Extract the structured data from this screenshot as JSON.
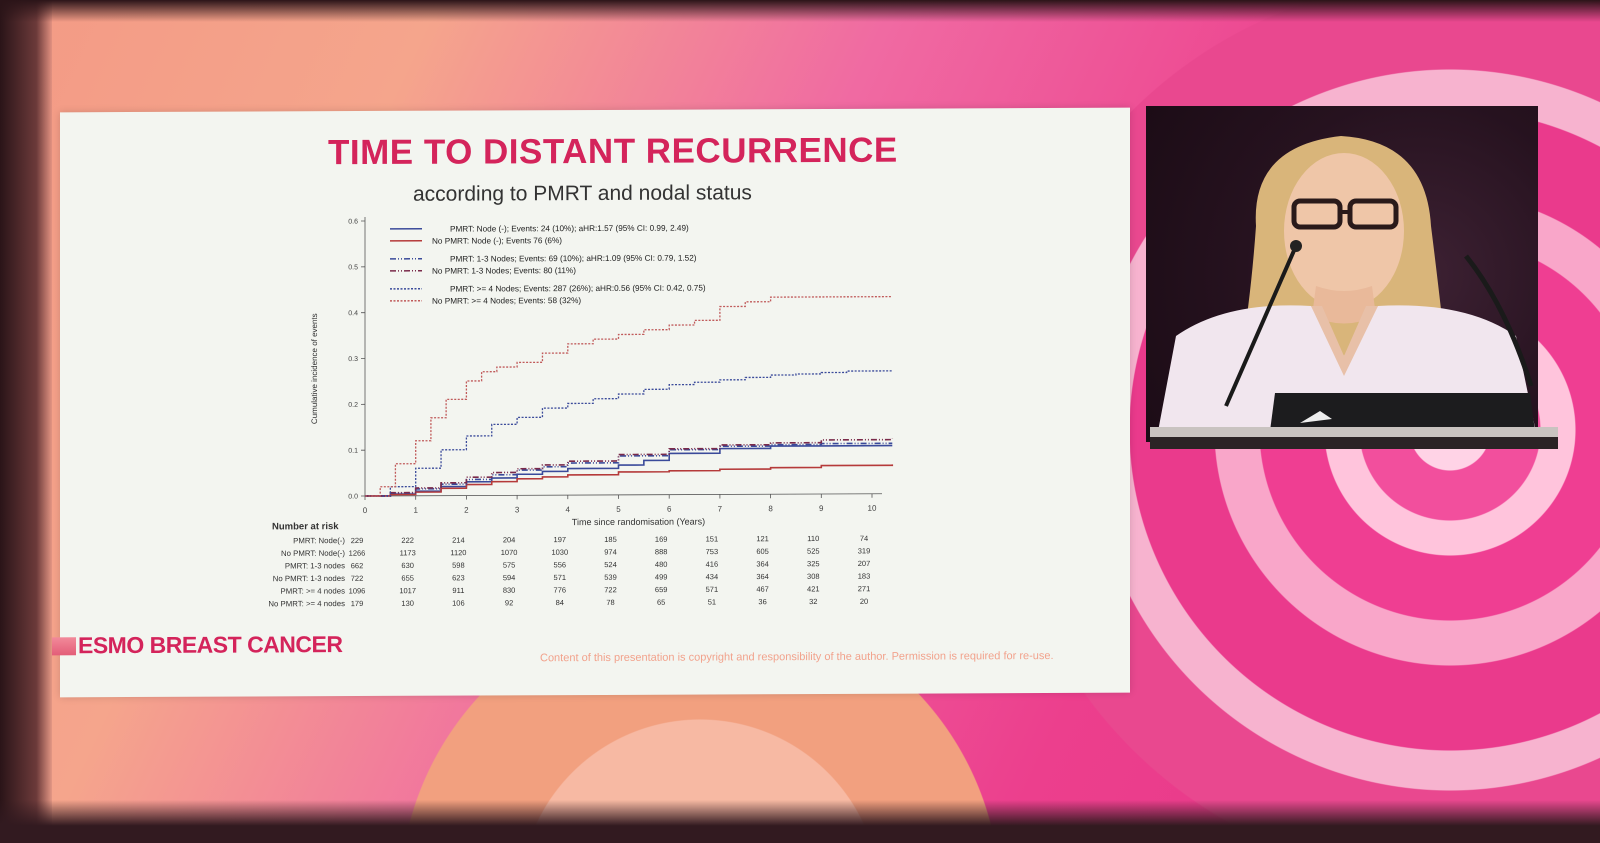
{
  "slide": {
    "title": "TIME TO DISTANT RECURRENCE",
    "subtitle": "according to PMRT and nodal status",
    "logo": "ESMO BREAST CANCER",
    "copyright": "Content of this presentation is copyright and responsibility of the author. Permission is required for re-use."
  },
  "chart_data": {
    "type": "line",
    "title": "TIME TO DISTANT RECURRENCE",
    "subtitle": "according to PMRT and nodal status",
    "xlabel": "Time since randomisation (Years)",
    "ylabel": "Cumulative incidence of events",
    "xlim": [
      0,
      10
    ],
    "ylim": [
      0,
      0.6
    ],
    "xticks": [
      "0",
      "1",
      "2",
      "3",
      "4",
      "5",
      "6",
      "7",
      "8",
      "9",
      "10"
    ],
    "yticks": [
      "0.0",
      "0.1",
      "0.2",
      "0.3",
      "0.4",
      "0.5",
      "0.6"
    ],
    "legend_position": "top-left",
    "grid": false,
    "series": [
      {
        "name": "PMRT: Node (-);  Events: 24 (10%);  aHR:1.57 (95% CI: 0.99, 2.49)",
        "color": "#3a4a9a",
        "dash": "",
        "x": [
          0,
          0.5,
          1,
          1.5,
          2,
          2.5,
          3,
          3.5,
          4,
          5,
          5.5,
          6,
          7,
          8,
          9,
          10.4
        ],
        "y": [
          0,
          0.004,
          0.01,
          0.02,
          0.03,
          0.038,
          0.046,
          0.052,
          0.058,
          0.065,
          0.075,
          0.09,
          0.1,
          0.105,
          0.105,
          0.105
        ]
      },
      {
        "name": "No PMRT: Node (-);  Events 76 (6%)",
        "color": "#b53a3a",
        "dash": "",
        "x": [
          0,
          0.5,
          1,
          1.5,
          2,
          2.5,
          3,
          3.5,
          4,
          5,
          6,
          7,
          8,
          9,
          10.4
        ],
        "y": [
          0,
          0.003,
          0.008,
          0.016,
          0.024,
          0.03,
          0.036,
          0.04,
          0.044,
          0.05,
          0.052,
          0.055,
          0.058,
          0.062,
          0.064
        ]
      },
      {
        "name": "PMRT: 1-3 Nodes;  Events: 69 (10%);  aHR:1.09 (95% CI: 0.79, 1.52)",
        "color": "#3a4a9a",
        "dash": "6 2 1 2 1 2",
        "x": [
          0,
          0.5,
          1,
          1.5,
          2,
          2.5,
          3,
          3.5,
          4,
          5,
          6,
          7,
          8,
          9,
          10.4
        ],
        "y": [
          0,
          0.006,
          0.015,
          0.025,
          0.035,
          0.045,
          0.055,
          0.062,
          0.07,
          0.085,
          0.098,
          0.105,
          0.108,
          0.11,
          0.11
        ]
      },
      {
        "name": "No PMRT: 1-3 Nodes;  Events: 80 (11%)",
        "color": "#7a2a4a",
        "dash": "6 2 1 2 1 2",
        "x": [
          0,
          0.5,
          1,
          1.5,
          2,
          2.5,
          3,
          3.5,
          4,
          5,
          6,
          7,
          8,
          9,
          10.4
        ],
        "y": [
          0,
          0.007,
          0.017,
          0.028,
          0.04,
          0.05,
          0.058,
          0.066,
          0.074,
          0.088,
          0.1,
          0.108,
          0.112,
          0.118,
          0.12
        ]
      },
      {
        "name": "PMRT: >= 4 Nodes;  Events: 287 (26%);  aHR:0.56 (95% CI: 0.42, 0.75)",
        "color": "#3a4a9a",
        "dash": "2 1.5",
        "x": [
          0,
          0.5,
          1,
          1.5,
          2,
          2.5,
          3,
          3.5,
          4,
          4.5,
          5,
          5.5,
          6,
          6.5,
          7,
          7.5,
          8,
          8.5,
          9,
          9.5,
          10.4
        ],
        "y": [
          0,
          0.02,
          0.06,
          0.1,
          0.13,
          0.155,
          0.17,
          0.19,
          0.2,
          0.21,
          0.22,
          0.23,
          0.24,
          0.245,
          0.25,
          0.255,
          0.26,
          0.262,
          0.265,
          0.268,
          0.27
        ]
      },
      {
        "name": "No PMRT: >= 4 Nodes;  Events: 58 (32%)",
        "color": "#c05a5a",
        "dash": "2 1.5",
        "x": [
          0,
          0.3,
          0.6,
          1,
          1.3,
          1.6,
          2,
          2.3,
          2.6,
          3,
          3.5,
          4,
          4.5,
          5,
          5.5,
          6,
          6.5,
          7,
          7.5,
          8,
          9,
          10.4
        ],
        "y": [
          0,
          0.02,
          0.07,
          0.12,
          0.17,
          0.21,
          0.25,
          0.27,
          0.28,
          0.29,
          0.31,
          0.33,
          0.34,
          0.35,
          0.36,
          0.37,
          0.38,
          0.41,
          0.42,
          0.43,
          0.43,
          0.43
        ]
      }
    ],
    "risk_table": {
      "header": "Number at risk",
      "times": [
        "0",
        "1",
        "2",
        "3",
        "4",
        "5",
        "6",
        "7",
        "8",
        "9",
        "10"
      ],
      "rows": [
        {
          "label": "PMRT: Node(-)",
          "values": [
            "229",
            "222",
            "214",
            "204",
            "197",
            "185",
            "169",
            "151",
            "121",
            "110",
            "74"
          ]
        },
        {
          "label": "No PMRT: Node(-)",
          "values": [
            "1266",
            "1173",
            "1120",
            "1070",
            "1030",
            "974",
            "888",
            "753",
            "605",
            "525",
            "319"
          ]
        },
        {
          "label": "PMRT: 1-3 nodes",
          "values": [
            "662",
            "630",
            "598",
            "575",
            "556",
            "524",
            "480",
            "416",
            "364",
            "325",
            "207"
          ]
        },
        {
          "label": "No PMRT: 1-3 nodes",
          "values": [
            "722",
            "655",
            "623",
            "594",
            "571",
            "539",
            "499",
            "434",
            "364",
            "308",
            "183"
          ]
        },
        {
          "label": "PMRT: >= 4 nodes",
          "values": [
            "1096",
            "1017",
            "911",
            "830",
            "776",
            "722",
            "659",
            "571",
            "467",
            "421",
            "271"
          ]
        },
        {
          "label": "No PMRT: >= 4 nodes",
          "values": [
            "179",
            "130",
            "106",
            "92",
            "84",
            "78",
            "65",
            "51",
            "36",
            "32",
            "20"
          ]
        }
      ]
    }
  }
}
